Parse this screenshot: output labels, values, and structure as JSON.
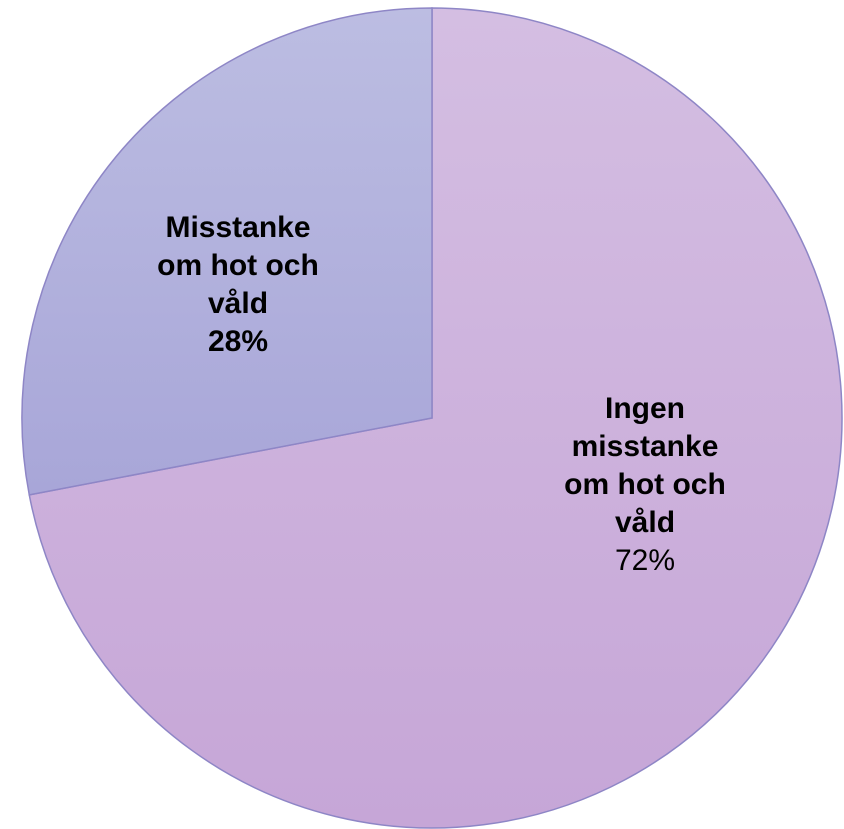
{
  "chart_data": {
    "type": "pie",
    "categories": [
      "Ingen misstanke om hot och våld",
      "Misstanke om hot och våld"
    ],
    "values": [
      72,
      28
    ],
    "value_labels": [
      "72%",
      "28%"
    ],
    "colors": [
      "#cbaedb",
      "#b0b0dc"
    ]
  }
}
